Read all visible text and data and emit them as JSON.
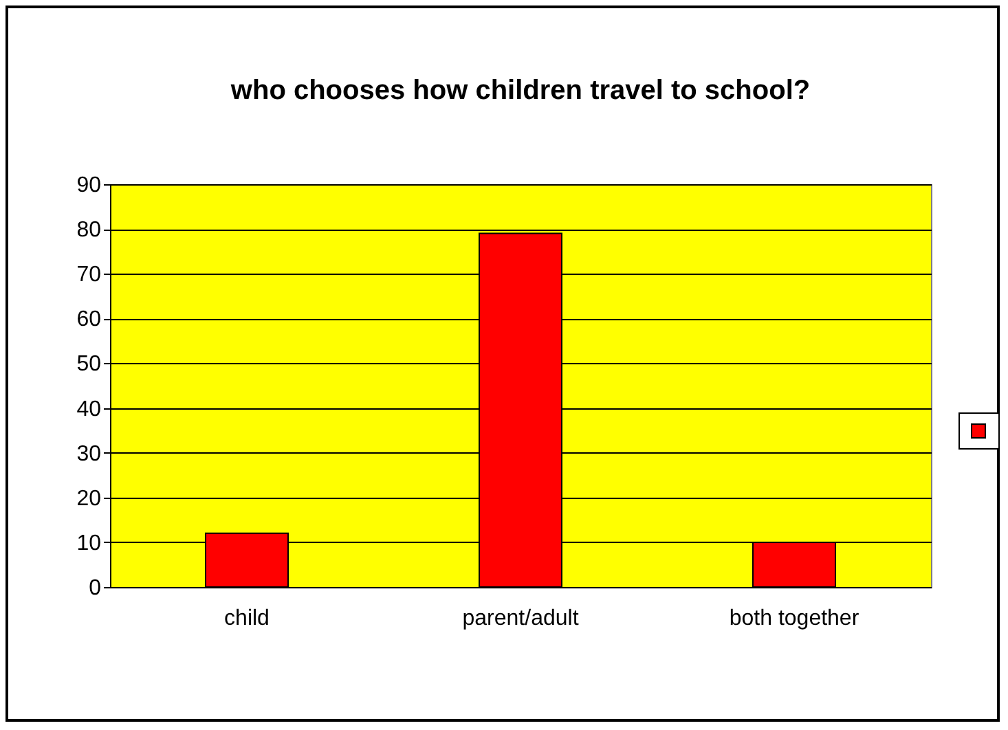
{
  "chart_data": {
    "type": "bar",
    "title": "who chooses how children travel to school?",
    "categories": [
      "child",
      "parent/adult",
      "both together"
    ],
    "series": [
      {
        "color": "#ff0000",
        "values": [
          12,
          79,
          10
        ]
      }
    ],
    "ylim": [
      0,
      90
    ],
    "yticks": [
      0,
      10,
      20,
      30,
      40,
      50,
      60,
      70,
      80,
      90
    ],
    "grid": "y"
  }
}
